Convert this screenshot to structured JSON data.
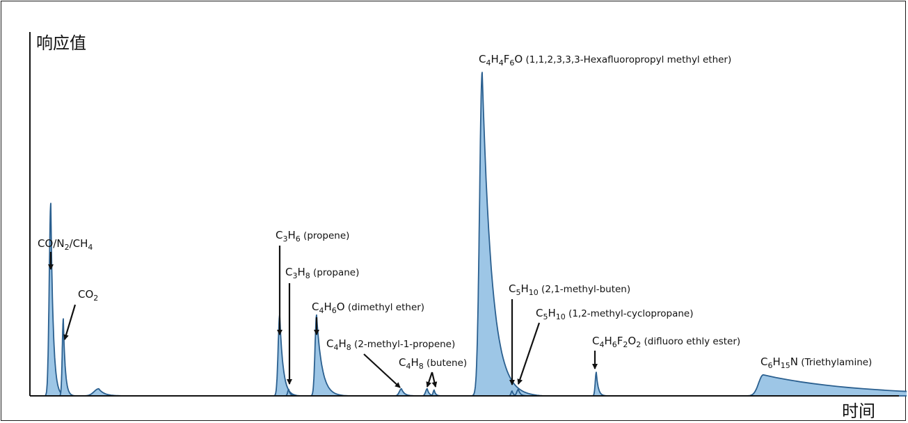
{
  "chart_data": {
    "type": "area",
    "title": "",
    "ylabel": "响应值",
    "xlabel": "时间",
    "colors": {
      "fill": "#9dc6e6",
      "stroke": "#2a5f8f",
      "axis": "#111111",
      "arrow": "#111111"
    },
    "peaks": [
      {
        "id": "co-n2-ch4",
        "t": 71,
        "height": 0.595,
        "label": {
          "formula": [
            [
              "CO/N",
              ""
            ],
            [
              "2",
              "sub"
            ],
            [
              "/CH",
              ""
            ],
            [
              "4",
              "sub"
            ]
          ],
          "name": ""
        }
      },
      {
        "id": "co2",
        "t": 89,
        "height": 0.238,
        "label": {
          "formula": [
            [
              "CO",
              ""
            ],
            [
              "2",
              "sub"
            ]
          ],
          "name": ""
        }
      },
      {
        "id": "unlabeled-1",
        "t": 140,
        "height": 0.022,
        "label": null
      },
      {
        "id": "propene",
        "t": 400,
        "height": 0.25,
        "label": {
          "formula": [
            [
              "C",
              ""
            ],
            [
              "3",
              "sub"
            ],
            [
              "H",
              ""
            ],
            [
              "6",
              "sub"
            ]
          ],
          "name": " (propene)"
        }
      },
      {
        "id": "propane",
        "t": 413,
        "height": 0.02,
        "label": {
          "formula": [
            [
              "C",
              ""
            ],
            [
              "3",
              "sub"
            ],
            [
              "H",
              ""
            ],
            [
              "8",
              "sub"
            ]
          ],
          "name": " (propane)"
        }
      },
      {
        "id": "dimethyl-ether",
        "t": 453,
        "height": 0.25,
        "label": {
          "formula": [
            [
              "C",
              ""
            ],
            [
              "4",
              "sub"
            ],
            [
              "H",
              ""
            ],
            [
              "6",
              "sub"
            ],
            [
              "O",
              ""
            ]
          ],
          "name": " (dimethyl ether)"
        }
      },
      {
        "id": "2-methyl-1-propene",
        "t": 575,
        "height": 0.022,
        "label": {
          "formula": [
            [
              "C",
              ""
            ],
            [
              "4",
              "sub"
            ],
            [
              "H",
              ""
            ],
            [
              "8",
              "sub"
            ]
          ],
          "name": " (2-methyl-1-propene)"
        }
      },
      {
        "id": "butene-a",
        "t": 612,
        "height": 0.022,
        "label": {
          "formula": [
            [
              "C",
              ""
            ],
            [
              "4",
              "sub"
            ],
            [
              "H",
              ""
            ],
            [
              "8",
              "sub"
            ]
          ],
          "name": " (butene)"
        }
      },
      {
        "id": "butene-b",
        "t": 622,
        "height": 0.018,
        "label": null
      },
      {
        "id": "hexafluoropropyl-methyl-ether",
        "t": 691,
        "height": 1.0,
        "label": {
          "formula": [
            [
              "C",
              ""
            ],
            [
              "4",
              "sub"
            ],
            [
              "H",
              ""
            ],
            [
              "4",
              "sub"
            ],
            [
              "F",
              ""
            ],
            [
              "6",
              "sub"
            ],
            [
              "O",
              ""
            ]
          ],
          "name": " (1,1,2,3,3,3-Hexafluoropropyl methyl ether)"
        }
      },
      {
        "id": "2-1-methyl-buten",
        "t": 734,
        "height": 0.015,
        "label": {
          "formula": [
            [
              "C",
              ""
            ],
            [
              "5",
              "sub"
            ],
            [
              "H",
              ""
            ],
            [
              "10",
              "sub"
            ]
          ],
          "name": " (2,1-methyl-buten)"
        }
      },
      {
        "id": "1-2-methyl-cyclopropane",
        "t": 743,
        "height": 0.02,
        "label": {
          "formula": [
            [
              "C",
              ""
            ],
            [
              "5",
              "sub"
            ],
            [
              "H",
              ""
            ],
            [
              "10",
              "sub"
            ]
          ],
          "name": " (1,2-methyl-cyclopropane)"
        }
      },
      {
        "id": "difluoro-ethly-ester",
        "t": 855,
        "height": 0.073,
        "label": {
          "formula": [
            [
              "C",
              ""
            ],
            [
              "4",
              "sub"
            ],
            [
              "H",
              ""
            ],
            [
              "6",
              "sub"
            ],
            [
              "F",
              ""
            ],
            [
              "2",
              "sub"
            ],
            [
              "O",
              ""
            ],
            [
              "2",
              "sub"
            ]
          ],
          "name": " (difluoro ethly ester)"
        }
      },
      {
        "id": "triethylamine",
        "t": 1095,
        "height": 0.065,
        "label": {
          "formula": [
            [
              "C",
              ""
            ],
            [
              "6",
              "sub"
            ],
            [
              "H",
              ""
            ],
            [
              "15",
              "sub"
            ],
            [
              "N",
              ""
            ]
          ],
          "name": " (Triethylamine)"
        }
      }
    ]
  }
}
